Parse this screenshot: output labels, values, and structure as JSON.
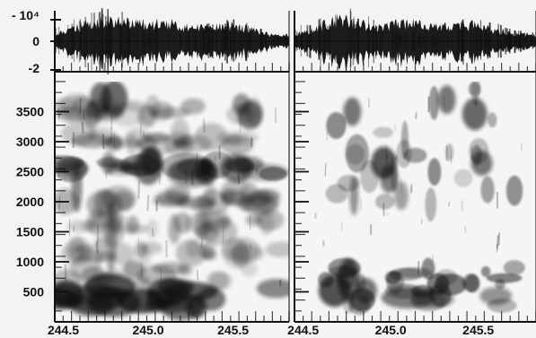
{
  "chart_data": {
    "type": "heatmap",
    "panels": [
      {
        "name": "",
        "waveform_yticks": [
          "- 10⁴",
          "0",
          "-2"
        ],
        "spectrogram_yticks": [
          "3500",
          "3000",
          "2500",
          "2000",
          "1500",
          "1000",
          "500"
        ],
        "xticks": [
          "244.5",
          "245.0",
          "245.5"
        ],
        "waveform_ylim": [
          -2.2,
          2.2
        ],
        "spectrogram_ylim": [
          0,
          4000
        ],
        "xlim": [
          244.45,
          245.83
        ],
        "colormap": "grayscale",
        "colors": {
          "background": "#f3f3f1",
          "ink": "#111111",
          "axis": "#111111"
        }
      },
      {
        "name": "",
        "waveform_yticks": [],
        "spectrogram_yticks": [],
        "xticks": [
          "244.5",
          "245.0",
          "245.5"
        ],
        "waveform_ylim": [
          -2.2,
          2.2
        ],
        "spectrogram_ylim": [
          0,
          4000
        ],
        "xlim": [
          244.45,
          245.83
        ],
        "colormap": "grayscale",
        "colors": {
          "background": "#f3f3f1",
          "ink": "#111111",
          "axis": "#111111"
        }
      }
    ],
    "x_axis_ticks": [
      244.5,
      245.0,
      245.5
    ],
    "y_axis_ticks": [
      3500,
      3000,
      2500,
      2000,
      1500,
      1000,
      500
    ],
    "grid": false
  }
}
